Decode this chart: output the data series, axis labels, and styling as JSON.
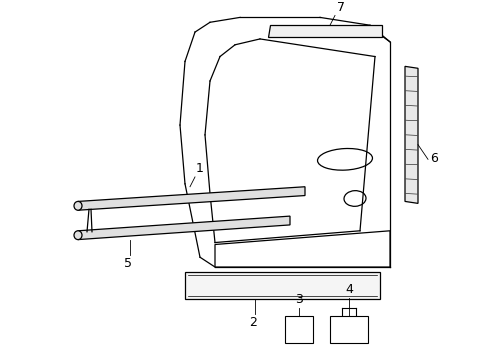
{
  "background_color": "#ffffff",
  "line_color": "#000000",
  "fig_width": 4.9,
  "fig_height": 3.6,
  "dpi": 100,
  "label_fontsize": 9
}
